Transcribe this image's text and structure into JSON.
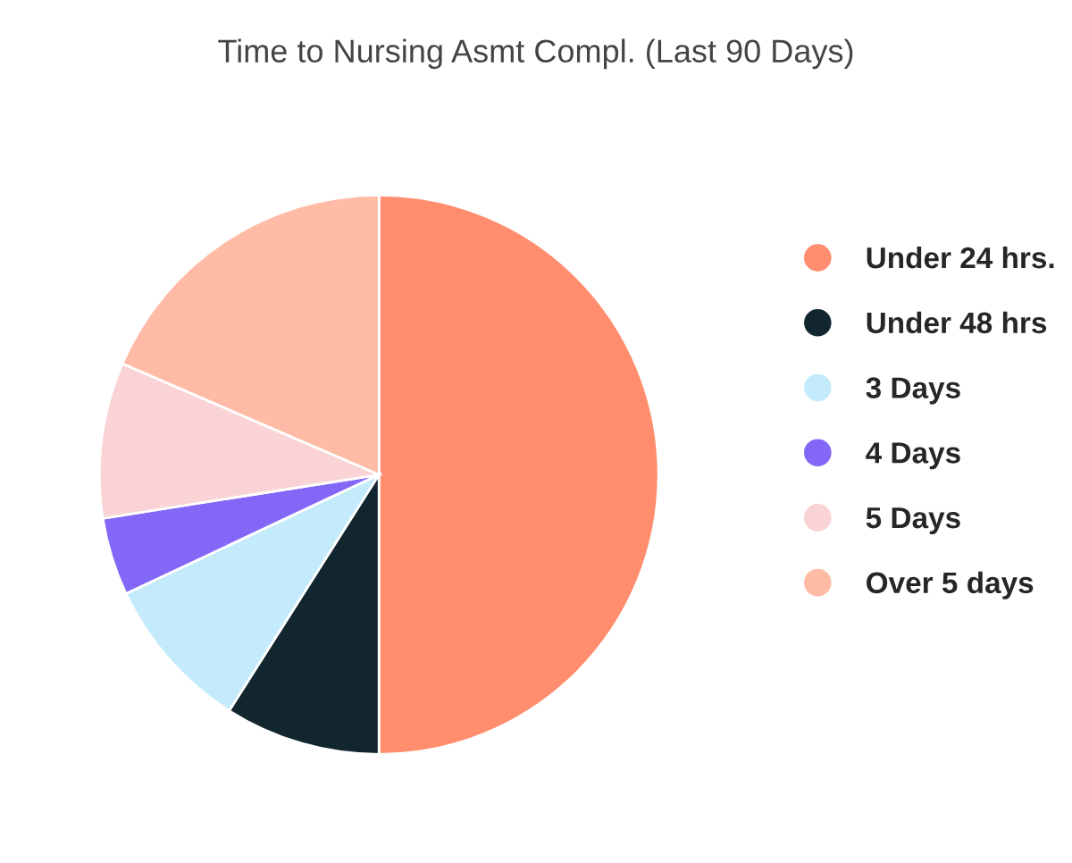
{
  "chart_data": {
    "type": "pie",
    "title": "Time to Nursing Asmt Compl. (Last 90 Days)",
    "categories": [
      "Under 24 hrs.",
      "Under 48 hrs",
      "3 Days",
      "4 Days",
      "5 Days",
      "Over 5 days"
    ],
    "values": [
      50,
      9,
      9,
      4.5,
      9,
      18.5
    ],
    "colors": [
      "#ff8d6e",
      "#12262f",
      "#c4ebfb",
      "#8367f7",
      "#f9d3d6",
      "#ffbba5"
    ],
    "legend": "right"
  }
}
